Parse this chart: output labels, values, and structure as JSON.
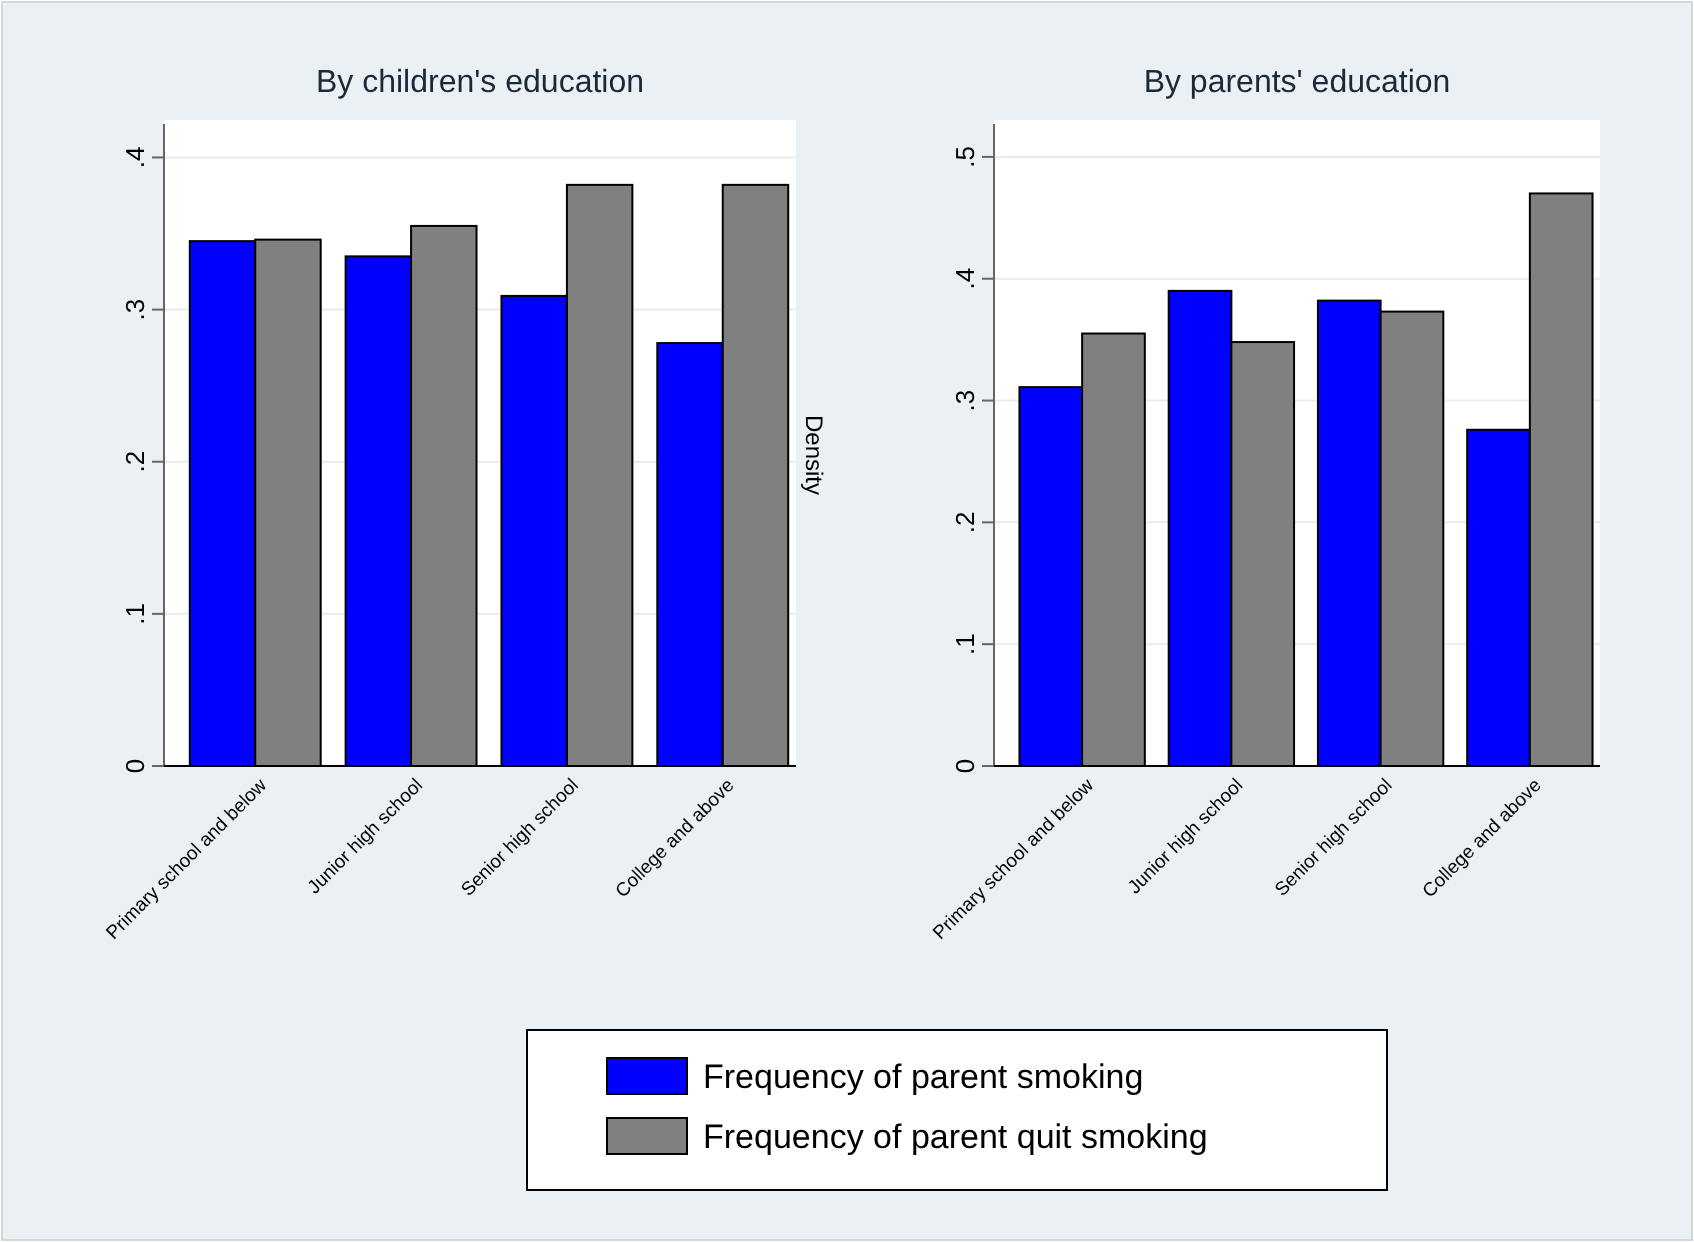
{
  "chart_data": [
    {
      "type": "bar",
      "title": "By children's education",
      "categories": [
        "Primary school and below",
        "Junior high school",
        "Senior high school",
        "College and above"
      ],
      "series": [
        {
          "name": "Frequency of parent smoking",
          "color": "#0000ff",
          "values": [
            0.345,
            0.335,
            0.309,
            0.278
          ]
        },
        {
          "name": "Frequency of parent quit smoking",
          "color": "#808080",
          "values": [
            0.346,
            0.355,
            0.382,
            0.382
          ]
        }
      ],
      "ylim": [
        0,
        0.422
      ],
      "yticks": [
        0,
        {
          "value": 0.1,
          "label": ".1"
        },
        {
          "value": 0.2,
          "label": ".2"
        },
        {
          "value": 0.3,
          "label": ".3"
        },
        {
          "value": 0.4,
          "label": ".4"
        }
      ],
      "grid": "y",
      "legend": "bottom"
    },
    {
      "type": "bar",
      "title": "By parents' education",
      "ylabel": "Density",
      "categories": [
        "Primary school and below",
        "Junior high school",
        "Senior high school",
        "College and above"
      ],
      "series": [
        {
          "color": "#0000ff",
          "values": [
            0.311,
            0.39,
            0.382,
            0.276
          ]
        },
        {
          "color": "#808080",
          "values": [
            0.355,
            0.348,
            0.373,
            0.47
          ]
        }
      ],
      "ylim": [
        0,
        0.527
      ],
      "yticks": [
        0,
        {
          "value": 0.1,
          "label": ".1"
        },
        {
          "value": 0.2,
          "label": ".2"
        },
        {
          "value": 0.3,
          "label": ".3"
        },
        {
          "value": 0.4,
          "label": ".4"
        },
        {
          "value": 0.5,
          "label": ".5"
        }
      ],
      "grid": "y"
    }
  ]
}
